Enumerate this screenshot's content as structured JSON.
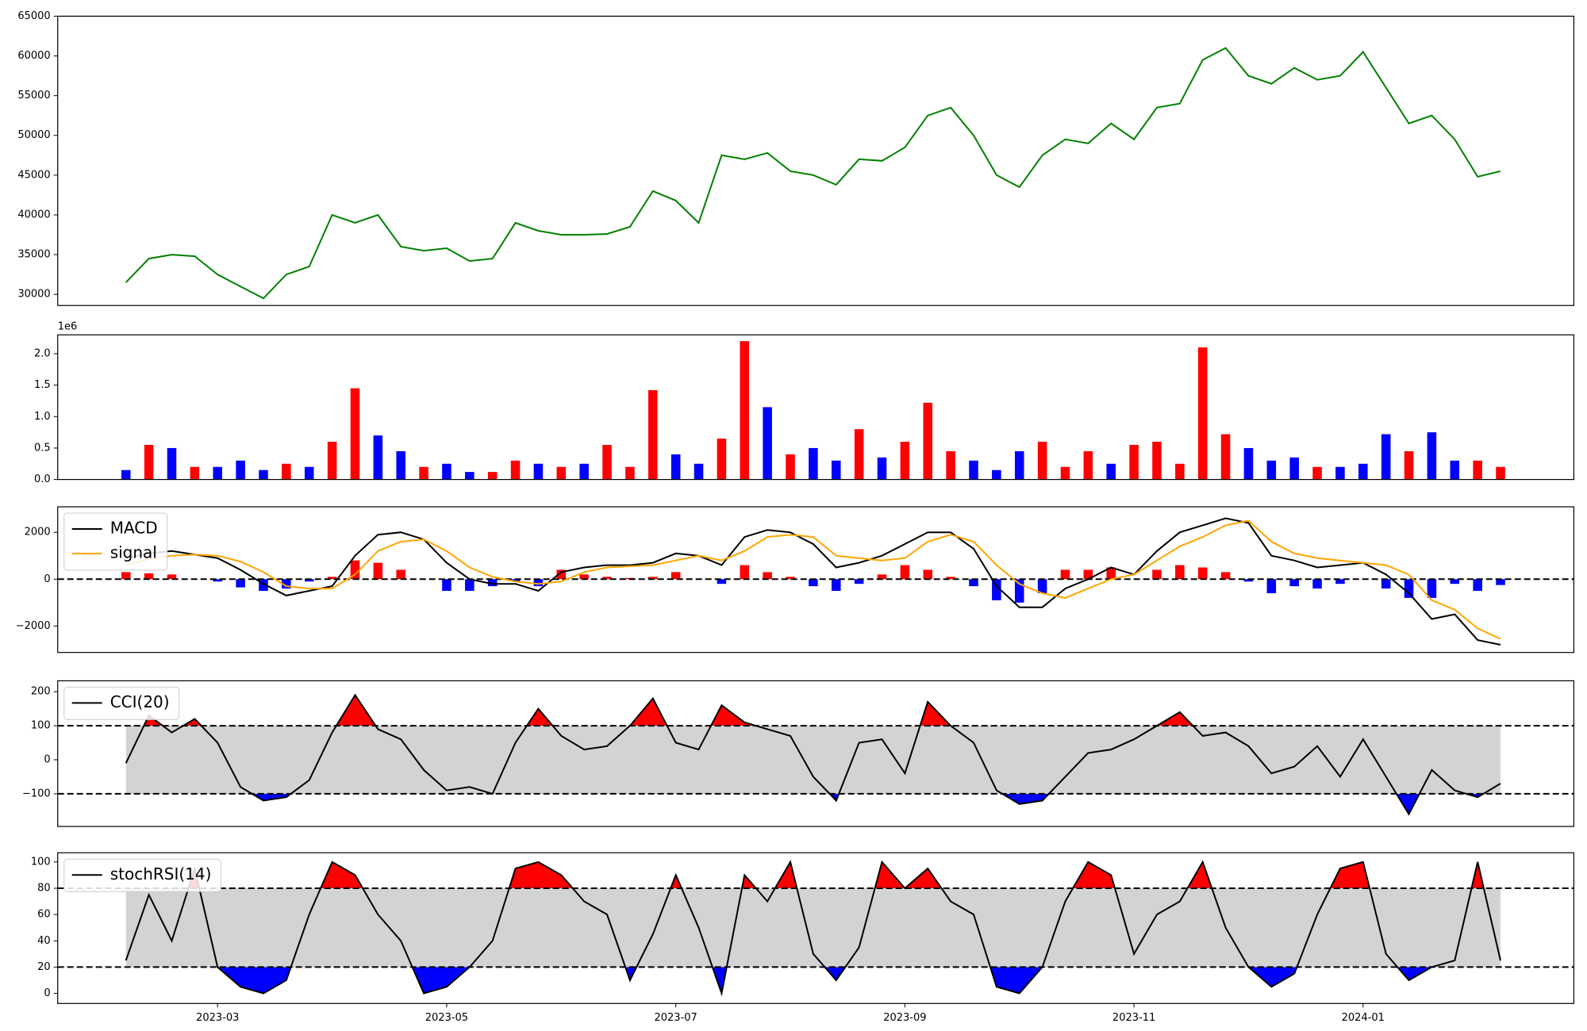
{
  "chart_data": [
    {
      "type": "line",
      "color": "#008000",
      "x": [
        1.2,
        1.4,
        1.6,
        1.8,
        2.0,
        2.2,
        2.4,
        2.6,
        2.8,
        3.0,
        3.2,
        3.4,
        3.6,
        3.8,
        4.0,
        4.2,
        4.4,
        4.6,
        4.8,
        5.0,
        5.2,
        5.4,
        5.6,
        5.8,
        6.0,
        6.2,
        6.4,
        6.6,
        6.8,
        7.0,
        7.2,
        7.4,
        7.6,
        7.8,
        8.0,
        8.2,
        8.4,
        8.6,
        8.8,
        9.0,
        9.2,
        9.4,
        9.6,
        9.8,
        10.0,
        10.2,
        10.4,
        10.6,
        10.8,
        11.0,
        11.2,
        11.4,
        11.6,
        11.8,
        12.0,
        12.2,
        12.4,
        12.6,
        12.8,
        13.0,
        13.2
      ],
      "values": [
        31500,
        34500,
        35000,
        34800,
        32500,
        31000,
        29500,
        32500,
        33500,
        40000,
        39000,
        40000,
        36000,
        35500,
        35800,
        34200,
        34500,
        39000,
        38000,
        37500,
        37500,
        37600,
        38500,
        43000,
        41800,
        39000,
        47500,
        47000,
        47800,
        45500,
        45000,
        43800,
        47000,
        46800,
        48500,
        52500,
        53500,
        50000,
        45000,
        43500,
        47500,
        49500,
        49000,
        51500,
        49500,
        53500,
        54000,
        59500,
        61000,
        57500,
        56500,
        58500,
        57000,
        57500,
        60500,
        56000,
        51500,
        52500,
        49500,
        44800,
        45500
      ],
      "xlim": [
        0.604,
        13.84
      ],
      "ylim": [
        28600,
        65000
      ],
      "yticks": [
        30000,
        35000,
        40000,
        45000,
        50000,
        55000,
        60000,
        65000
      ]
    },
    {
      "type": "bar",
      "offset_label": "1e6",
      "x": [
        1.2,
        1.4,
        1.6,
        1.8,
        2.0,
        2.2,
        2.4,
        2.6,
        2.8,
        3.0,
        3.2,
        3.4,
        3.6,
        3.8,
        4.0,
        4.2,
        4.4,
        4.6,
        4.8,
        5.0,
        5.2,
        5.4,
        5.6,
        5.8,
        6.0,
        6.2,
        6.4,
        6.6,
        6.8,
        7.0,
        7.2,
        7.4,
        7.6,
        7.8,
        8.0,
        8.2,
        8.4,
        8.6,
        8.8,
        9.0,
        9.2,
        9.4,
        9.6,
        9.8,
        10.0,
        10.2,
        10.4,
        10.6,
        10.8,
        11.0,
        11.2,
        11.4,
        11.6,
        11.8,
        12.0,
        12.2,
        12.4,
        12.6,
        12.8,
        13.0,
        13.2
      ],
      "values": [
        150000,
        550000,
        500000,
        200000,
        200000,
        300000,
        150000,
        250000,
        200000,
        600000,
        1450000,
        700000,
        450000,
        200000,
        250000,
        120000,
        120000,
        300000,
        250000,
        200000,
        250000,
        550000,
        200000,
        1420000,
        400000,
        250000,
        650000,
        2200000,
        1150000,
        400000,
        500000,
        300000,
        800000,
        350000,
        600000,
        1220000,
        450000,
        300000,
        150000,
        450000,
        600000,
        200000,
        450000,
        250000,
        550000,
        600000,
        250000,
        2100000,
        720000,
        500000,
        300000,
        350000,
        200000,
        200000,
        250000,
        720000,
        450000,
        750000,
        300000,
        300000,
        200000
      ],
      "colors": [
        "#0000ff",
        "#ff0000",
        "#0000ff",
        "#ff0000",
        "#0000ff",
        "#0000ff",
        "#0000ff",
        "#ff0000",
        "#0000ff",
        "#ff0000",
        "#ff0000",
        "#0000ff",
        "#0000ff",
        "#ff0000",
        "#0000ff",
        "#0000ff",
        "#ff0000",
        "#ff0000",
        "#0000ff",
        "#ff0000",
        "#0000ff",
        "#ff0000",
        "#ff0000",
        "#ff0000",
        "#0000ff",
        "#0000ff",
        "#ff0000",
        "#ff0000",
        "#0000ff",
        "#ff0000",
        "#0000ff",
        "#0000ff",
        "#ff0000",
        "#0000ff",
        "#ff0000",
        "#ff0000",
        "#ff0000",
        "#0000ff",
        "#0000ff",
        "#0000ff",
        "#ff0000",
        "#ff0000",
        "#ff0000",
        "#0000ff",
        "#ff0000",
        "#ff0000",
        "#ff0000",
        "#ff0000",
        "#ff0000",
        "#0000ff",
        "#0000ff",
        "#0000ff",
        "#ff0000",
        "#0000ff",
        "#0000ff",
        "#0000ff",
        "#ff0000",
        "#0000ff",
        "#0000ff",
        "#ff0000",
        "#ff0000"
      ],
      "xlim": [
        0.604,
        13.84
      ],
      "ylim": [
        0,
        2300000
      ],
      "yticks": [
        {
          "value": 0,
          "label": "0.0"
        },
        {
          "value": 500000,
          "label": "0.5"
        },
        {
          "value": 1000000,
          "label": "1.0"
        },
        {
          "value": 1500000,
          "label": "1.5"
        },
        {
          "value": 2000000,
          "label": "2.0"
        }
      ]
    },
    {
      "type": "combo",
      "legend": "upper left",
      "hlines": [
        0
      ],
      "x": [
        1.2,
        1.4,
        1.6,
        1.8,
        2.0,
        2.2,
        2.4,
        2.6,
        2.8,
        3.0,
        3.2,
        3.4,
        3.6,
        3.8,
        4.0,
        4.2,
        4.4,
        4.6,
        4.8,
        5.0,
        5.2,
        5.4,
        5.6,
        5.8,
        6.0,
        6.2,
        6.4,
        6.6,
        6.8,
        7.0,
        7.2,
        7.4,
        7.6,
        7.8,
        8.0,
        8.2,
        8.4,
        8.6,
        8.8,
        9.0,
        9.2,
        9.4,
        9.6,
        9.8,
        10.0,
        10.2,
        10.4,
        10.6,
        10.8,
        11.0,
        11.2,
        11.4,
        11.6,
        11.8,
        12.0,
        12.2,
        12.4,
        12.6,
        12.8,
        13.0,
        13.2
      ],
      "histogram": {
        "pos_color": "#ff0000",
        "neg_color": "#0000ff",
        "values": [
          300,
          250,
          200,
          0,
          -100,
          -350,
          -500,
          -400,
          -100,
          100,
          800,
          700,
          400,
          0,
          -500,
          -500,
          -300,
          -100,
          -300,
          400,
          200,
          100,
          50,
          100,
          300,
          0,
          -200,
          600,
          300,
          100,
          -300,
          -500,
          -200,
          200,
          600,
          400,
          100,
          -300,
          -900,
          -1000,
          -600,
          400,
          400,
          500,
          0,
          400,
          600,
          500,
          300,
          -100,
          -600,
          -300,
          -400,
          -200,
          0,
          -400,
          -800,
          -800,
          -200,
          -500,
          -250
        ]
      },
      "series": [
        {
          "name": "MACD",
          "color": "#000000",
          "values": [
            900,
            1100,
            1200,
            1050,
            900,
            400,
            -200,
            -700,
            -500,
            -300,
            1000,
            1900,
            2000,
            1700,
            700,
            0,
            -200,
            -200,
            -500,
            300,
            500,
            600,
            600,
            700,
            1100,
            1000,
            600,
            1800,
            2100,
            2000,
            1500,
            500,
            700,
            1000,
            1500,
            2000,
            2000,
            1300,
            -300,
            -1200,
            -1200,
            -400,
            0,
            500,
            200,
            1200,
            2000,
            2300,
            2600,
            2400,
            1000,
            800,
            500,
            600,
            700,
            200,
            -600,
            -1700,
            -1500,
            -2600,
            -2800
          ]
        },
        {
          "name": "signal",
          "color": "#ffa500",
          "values": [
            600,
            850,
            1000,
            1050,
            1000,
            750,
            300,
            -300,
            -400,
            -400,
            200,
            1200,
            1600,
            1700,
            1200,
            500,
            100,
            -100,
            -200,
            -100,
            300,
            500,
            550,
            600,
            800,
            1000,
            800,
            1200,
            1800,
            1900,
            1800,
            1000,
            900,
            800,
            900,
            1600,
            1900,
            1600,
            600,
            -200,
            -600,
            -800,
            -400,
            0,
            200,
            800,
            1400,
            1800,
            2300,
            2500,
            1600,
            1100,
            900,
            800,
            700,
            600,
            200,
            -900,
            -1300,
            -2100,
            -2550
          ]
        }
      ],
      "xlim": [
        0.604,
        13.84
      ],
      "ylim": [
        -3130,
        3090
      ],
      "yticks": [
        {
          "value": -2000,
          "label": "−2000"
        },
        0,
        2000
      ]
    },
    {
      "type": "oscillator",
      "legend": "upper left",
      "band": [
        -100,
        100
      ],
      "band_color": "#d3d3d3",
      "above_color": "#ff0000",
      "below_color": "#0000ff",
      "x": [
        1.2,
        1.4,
        1.6,
        1.8,
        2.0,
        2.2,
        2.4,
        2.6,
        2.8,
        3.0,
        3.2,
        3.4,
        3.6,
        3.8,
        4.0,
        4.2,
        4.4,
        4.6,
        4.8,
        5.0,
        5.2,
        5.4,
        5.6,
        5.8,
        6.0,
        6.2,
        6.4,
        6.6,
        6.8,
        7.0,
        7.2,
        7.4,
        7.6,
        7.8,
        8.0,
        8.2,
        8.4,
        8.6,
        8.8,
        9.0,
        9.2,
        9.4,
        9.6,
        9.8,
        10.0,
        10.2,
        10.4,
        10.6,
        10.8,
        11.0,
        11.2,
        11.4,
        11.6,
        11.8,
        12.0,
        12.2,
        12.4,
        12.6,
        12.8,
        13.0,
        13.2
      ],
      "series": [
        {
          "name": "CCI(20)",
          "color": "#000000",
          "values": [
            -10,
            130,
            80,
            120,
            50,
            -80,
            -120,
            -110,
            -60,
            80,
            190,
            90,
            60,
            -30,
            -90,
            -80,
            -100,
            50,
            150,
            70,
            30,
            40,
            100,
            180,
            50,
            30,
            160,
            110,
            90,
            70,
            -50,
            -120,
            50,
            60,
            -40,
            170,
            100,
            50,
            -90,
            -130,
            -120,
            -50,
            20,
            30,
            60,
            100,
            140,
            70,
            80,
            40,
            -40,
            -20,
            40,
            -50,
            60,
            -50,
            -160,
            -30,
            -90,
            -110,
            -70
          ]
        }
      ],
      "xlim": [
        0.604,
        13.84
      ],
      "ylim": [
        -196,
        232
      ],
      "yticks": [
        {
          "value": -100,
          "label": "−100"
        },
        0,
        100,
        200
      ]
    },
    {
      "type": "oscillator",
      "legend": "upper left",
      "band": [
        20,
        80
      ],
      "band_color": "#d3d3d3",
      "above_color": "#ff0000",
      "below_color": "#0000ff",
      "x": [
        1.2,
        1.4,
        1.6,
        1.8,
        2.0,
        2.2,
        2.4,
        2.6,
        2.8,
        3.0,
        3.2,
        3.4,
        3.6,
        3.8,
        4.0,
        4.2,
        4.4,
        4.6,
        4.8,
        5.0,
        5.2,
        5.4,
        5.6,
        5.8,
        6.0,
        6.2,
        6.4,
        6.6,
        6.8,
        7.0,
        7.2,
        7.4,
        7.6,
        7.8,
        8.0,
        8.2,
        8.4,
        8.6,
        8.8,
        9.0,
        9.2,
        9.4,
        9.6,
        9.8,
        10.0,
        10.2,
        10.4,
        10.6,
        10.8,
        11.0,
        11.2,
        11.4,
        11.6,
        11.8,
        12.0,
        12.2,
        12.4,
        12.6,
        12.8,
        13.0,
        13.2
      ],
      "series": [
        {
          "name": "stochRSI(14)",
          "color": "#000000",
          "values": [
            25,
            75,
            40,
            95,
            20,
            5,
            0,
            10,
            60,
            100,
            90,
            60,
            40,
            0,
            5,
            20,
            40,
            95,
            100,
            90,
            70,
            60,
            10,
            45,
            90,
            50,
            0,
            90,
            70,
            100,
            30,
            10,
            35,
            100,
            80,
            95,
            70,
            60,
            5,
            0,
            20,
            70,
            100,
            90,
            30,
            60,
            70,
            100,
            50,
            20,
            5,
            15,
            60,
            95,
            100,
            30,
            10,
            20,
            25,
            100,
            25
          ]
        }
      ],
      "xlim": [
        0.604,
        13.84
      ],
      "ylim": [
        -7.7,
        107
      ],
      "yticks": [
        0,
        20,
        40,
        60,
        80,
        100
      ],
      "xticks": [
        {
          "value": 2,
          "label": "2023-03"
        },
        {
          "value": 4,
          "label": "2023-05"
        },
        {
          "value": 6,
          "label": "2023-07"
        },
        {
          "value": 8,
          "label": "2023-09"
        },
        {
          "value": 10,
          "label": "2023-11"
        },
        {
          "value": 12,
          "label": "2024-01"
        }
      ]
    }
  ]
}
